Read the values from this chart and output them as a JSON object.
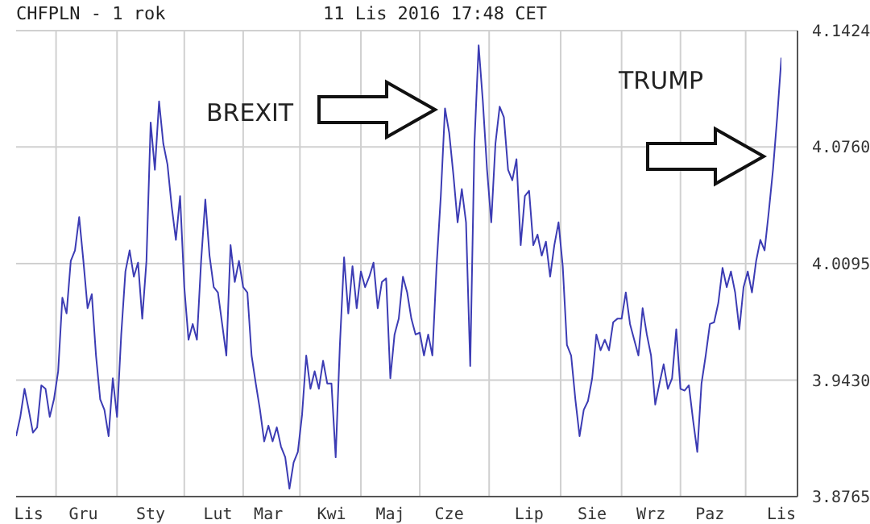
{
  "chart_data": {
    "type": "line",
    "title": "CHFPLN - 1 rok",
    "subtitle": "11 Lis 2016 17:48 CET",
    "annotations": [
      "BREXIT",
      "TRUMP"
    ],
    "categories": [
      null,
      null,
      null,
      "Lis",
      null,
      null,
      null,
      null,
      null,
      null,
      null,
      null,
      null,
      null,
      null,
      null,
      "Gru",
      null,
      null,
      null,
      null,
      null,
      null,
      null,
      null,
      null,
      null,
      null,
      null,
      null,
      null,
      null,
      "Sty",
      null,
      null,
      null,
      null,
      null,
      null,
      null,
      null,
      null,
      null,
      null,
      null,
      null,
      null,
      null,
      "Lut",
      null,
      null,
      null,
      null,
      null,
      null,
      null,
      null,
      null,
      null,
      null,
      "Mar",
      null,
      null,
      null,
      null,
      null,
      null,
      null,
      null,
      null,
      null,
      null,
      null,
      null,
      null,
      "Kwi",
      null,
      null,
      null,
      null,
      null,
      null,
      null,
      null,
      null,
      null,
      null,
      null,
      null,
      "Maj",
      null,
      null,
      null,
      null,
      null,
      null,
      null,
      null,
      null,
      null,
      null,
      null,
      null,
      "Cze",
      null,
      null,
      null,
      null,
      null,
      null,
      null,
      null,
      null,
      null,
      null,
      null,
      null,
      null,
      null,
      null,
      null,
      null,
      "Lip",
      null,
      null,
      null,
      null,
      null,
      null,
      null,
      null,
      null,
      null,
      null,
      null,
      null,
      null,
      "Sie",
      null,
      null,
      null,
      null,
      null,
      null,
      null,
      null,
      null,
      null,
      null,
      null,
      null,
      "Wrz",
      null,
      null,
      null,
      null,
      null,
      null,
      null,
      null,
      null,
      null,
      null,
      null,
      null,
      "Paz",
      null,
      null,
      null,
      null,
      null,
      null,
      null,
      null,
      null,
      null,
      null,
      null,
      null,
      null,
      null,
      null,
      "Lis"
    ],
    "series": [
      {
        "color": "#3c3cb4",
        "values": [
          3.911,
          3.922,
          3.938,
          3.926,
          3.913,
          3.916,
          3.94,
          3.938,
          3.922,
          3.932,
          3.948,
          3.99,
          3.981,
          4.011,
          4.017,
          4.036,
          4.011,
          3.984,
          3.992,
          3.957,
          3.932,
          3.926,
          3.911,
          3.944,
          3.922,
          3.969,
          4.005,
          4.017,
          4.002,
          4.01,
          3.978,
          4.011,
          4.09,
          4.063,
          4.102,
          4.078,
          4.066,
          4.042,
          4.023,
          4.048,
          3.996,
          3.966,
          3.975,
          3.966,
          4.011,
          4.046,
          4.014,
          3.996,
          3.993,
          3.975,
          3.957,
          4.02,
          3.999,
          4.011,
          3.996,
          3.993,
          3.957,
          3.941,
          3.926,
          3.908,
          3.917,
          3.908,
          3.916,
          3.905,
          3.899,
          3.881,
          3.896,
          3.902,
          3.923,
          3.957,
          3.938,
          3.948,
          3.938,
          3.954,
          3.941,
          3.941,
          3.899,
          3.963,
          4.013,
          3.981,
          4.008,
          3.984,
          4.005,
          3.996,
          4.002,
          4.01,
          3.984,
          3.999,
          4.001,
          3.944,
          3.969,
          3.978,
          4.002,
          3.993,
          3.978,
          3.969,
          3.97,
          3.957,
          3.969,
          3.957,
          4.008,
          4.048,
          4.098,
          4.084,
          4.06,
          4.033,
          4.052,
          4.033,
          3.951,
          4.078,
          4.134,
          4.102,
          4.063,
          4.033,
          4.078,
          4.099,
          4.093,
          4.063,
          4.057,
          4.069,
          4.02,
          4.048,
          4.051,
          4.02,
          4.026,
          4.014,
          4.022,
          4.002,
          4.02,
          4.033,
          4.008,
          3.963,
          3.957,
          3.932,
          3.911,
          3.926,
          3.931,
          3.944,
          3.969,
          3.96,
          3.966,
          3.96,
          3.976,
          3.978,
          3.978,
          3.993,
          3.975,
          3.966,
          3.957,
          3.984,
          3.969,
          3.957,
          3.929,
          3.941,
          3.952,
          3.938,
          3.944,
          3.972,
          3.938,
          3.937,
          3.94,
          3.92,
          3.902,
          3.941,
          3.957,
          3.975,
          3.976,
          3.987,
          4.007,
          3.996,
          4.005,
          3.993,
          3.972,
          3.996,
          4.005,
          3.993,
          4.011,
          4.023,
          4.017,
          4.039,
          4.063,
          4.093,
          4.127
        ]
      }
    ],
    "ylim": [
      3.8765,
      4.1424
    ],
    "yticks": [
      3.8765,
      {
        "value": 3.943,
        "label": "3.9430"
      },
      4.0095,
      {
        "value": 4.076,
        "label": "4.0760"
      },
      4.1424
    ],
    "grid": true,
    "marker": "none",
    "line_style": "solid"
  }
}
